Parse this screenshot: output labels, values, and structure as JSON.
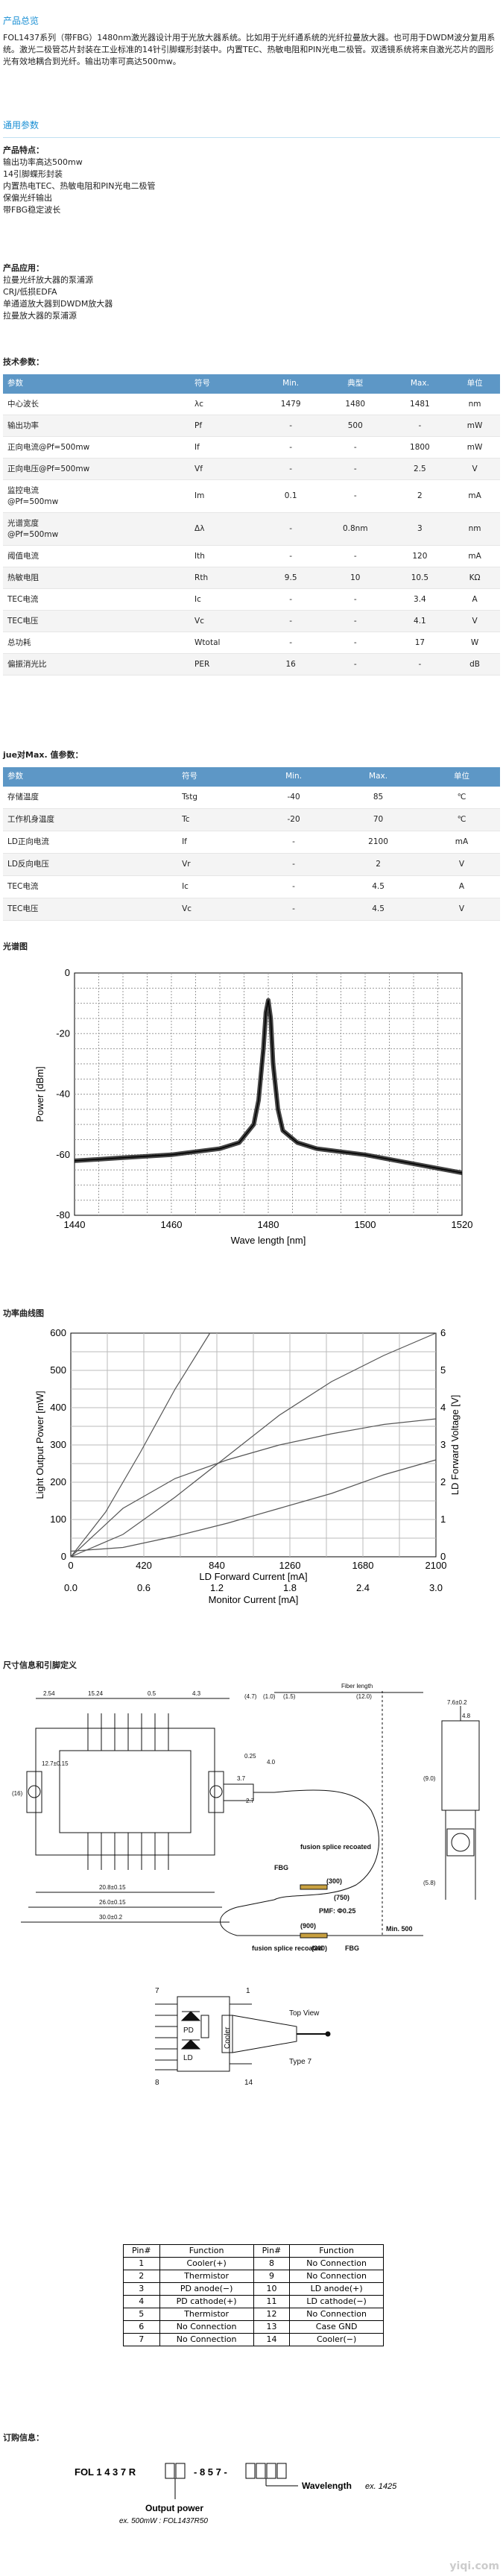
{
  "overview": {
    "title": "产品总览",
    "text": "FOL1437系列（带FBG）1480nm激光器设计用于光放大器系统。比如用于光纤通系统的光纤拉曼放大器。也可用于DWDM波分复用系统。激光二极管芯片封装在工业标准的14针引脚蝶形封装中。内置TEC、热敏电阻和PIN光电二极管。双透镜系统将来自激光芯片的圆形光有效地耦合到光纤。输出功率可高达500mw。"
  },
  "params_title": "通用参数",
  "features": {
    "title": "产品特点：",
    "items": [
      "输出功率高达500mw",
      "14引脚蝶形封装",
      "内置热电TEC、热敏电阻和PIN光电二极管",
      "保偏光纤输出",
      "带FBG稳定波长"
    ]
  },
  "applications": {
    "title": "产品应用：",
    "items": [
      "拉曼光纤放大器的泵浦源",
      "CRJ/低损EDFA",
      "单通道放大器到DWDM放大器",
      "拉曼放大器的泵浦源"
    ]
  },
  "spec_title": "技术参数：",
  "spec": {
    "headers": [
      "参数",
      "符号",
      "Min.",
      "典型",
      "Max.",
      "单位"
    ],
    "rows": [
      [
        "中心波长",
        "λc",
        "1479",
        "1480",
        "1481",
        "nm"
      ],
      [
        "输出功率",
        "Pf",
        "-",
        "500",
        "-",
        "mW"
      ],
      [
        "正向电流@Pf=500mw",
        "If",
        "-",
        "-",
        "1800",
        "mW"
      ],
      [
        "正向电压@Pf=500mw",
        "Vf",
        "-",
        "-",
        "2.5",
        "V"
      ],
      [
        "监控电流\n@Pf=500mw",
        "Im",
        "0.1",
        "-",
        "2",
        "mA"
      ],
      [
        "光谱宽度\n@Pf=500mw",
        "Δλ",
        "-",
        "0.8nm",
        "3",
        "nm"
      ],
      [
        "阈值电流",
        "Ith",
        "-",
        "-",
        "120",
        "mA"
      ],
      [
        "热敏电阻",
        "Rth",
        "9.5",
        "10",
        "10.5",
        "KΩ"
      ],
      [
        "TEC电流",
        "Ic",
        "-",
        "-",
        "3.4",
        "A"
      ],
      [
        "TEC电压",
        "Vc",
        "-",
        "-",
        "4.1",
        "V"
      ],
      [
        "总功耗",
        "Wtotal",
        "-",
        "-",
        "17",
        "W"
      ],
      [
        "偏振消光比",
        "PER",
        "16",
        "-",
        "-",
        "dB"
      ]
    ]
  },
  "max_title": "jue对Max. 值参数：",
  "max": {
    "headers": [
      "参数",
      "符号",
      "Min.",
      "Max.",
      "单位"
    ],
    "rows": [
      [
        "存储温度",
        "Tstg",
        "-40",
        "85",
        "℃"
      ],
      [
        "工作机身温度",
        "Tc",
        "-20",
        "70",
        "℃"
      ],
      [
        "LD正向电流",
        "If",
        "-",
        "2100",
        "mA"
      ],
      [
        "LD反向电压",
        "Vr",
        "-",
        "2",
        "V"
      ],
      [
        "TEC电流",
        "Ic",
        "-",
        "4.5",
        "A"
      ],
      [
        "TEC电压",
        "Vc",
        "-",
        "4.5",
        "V"
      ]
    ]
  },
  "spectrum_title": "光谱图",
  "spectrum_chart": {
    "type": "line",
    "xlabel": "Wave length [nm]",
    "ylabel": "Power [dBm]",
    "xlim": [
      1440,
      1520
    ],
    "ylim": [
      -80,
      0
    ],
    "xticks": [
      "1440",
      "1460",
      "1480",
      "1500",
      "1520"
    ],
    "yticks": [
      "0",
      "-20",
      "-40",
      "-60",
      "-80"
    ],
    "x": [
      1440,
      1450,
      1460,
      1470,
      1474,
      1477,
      1478,
      1479,
      1479.5,
      1480,
      1480.5,
      1481,
      1482,
      1483,
      1486,
      1490,
      1500,
      1510,
      1520
    ],
    "y": [
      -62,
      -61,
      -60,
      -58,
      -56,
      -50,
      -42,
      -25,
      -13,
      -9,
      -15,
      -30,
      -45,
      -52,
      -56,
      -58,
      -60,
      -63,
      -66
    ]
  },
  "power_title": "功率曲线图",
  "power_chart": {
    "type": "line",
    "ylabel_left": "Light Output Power [mW]",
    "ylabel_right": "LD Forward Voltage [V]",
    "xlabel1": "LD Forward Current [mA]",
    "xlabel2": "Monitor Current [mA]",
    "xticks1": [
      "0",
      "420",
      "840",
      "1260",
      "1680",
      "2100"
    ],
    "xticks2": [
      "0.0",
      "0.6",
      "1.2",
      "1.8",
      "2.4",
      "3.0"
    ],
    "yticks_left": [
      "0",
      "100",
      "200",
      "300",
      "400",
      "500",
      "600"
    ],
    "yticks_right": [
      "0",
      "1",
      "2",
      "3",
      "4",
      "5",
      "6"
    ],
    "series": [
      {
        "x": [
          0,
          200,
          400,
          600,
          800
        ],
        "y": [
          0,
          120,
          280,
          450,
          600
        ]
      },
      {
        "x": [
          0,
          300,
          600,
          900,
          1200,
          1500,
          1800,
          2100
        ],
        "y": [
          0,
          60,
          160,
          270,
          380,
          470,
          540,
          600
        ]
      },
      {
        "x": [
          0,
          300,
          600,
          900,
          1200,
          1500,
          1800,
          2100
        ],
        "y": [
          0,
          130,
          210,
          260,
          300,
          330,
          355,
          370
        ]
      },
      {
        "x": [
          0,
          300,
          600,
          900,
          1200,
          1500,
          1800,
          2100
        ],
        "y": [
          15,
          25,
          55,
          90,
          130,
          170,
          220,
          260
        ]
      }
    ]
  },
  "dims_title": "尺寸信息和引脚定义",
  "drawing": {
    "fbg": "FBG",
    "fusion_top": "fusion splice recoated",
    "fusion_bottom": "fusion splice recoated",
    "pmf": "PMF: Φ0.25",
    "min500": "Min. 500",
    "fiber_length": "Fiber length",
    "d300a": "(300)",
    "d750": "(750)",
    "d300b": "(300)",
    "d900": "(900)",
    "top_view": "Top View",
    "type7": "Type 7",
    "cooler": "Cooler",
    "pd": "PD",
    "ld": "LD",
    "pin7": "7",
    "pin1": "1",
    "pin8": "8",
    "pin14": "14",
    "dims": [
      "2.54",
      "15.24",
      "0.5",
      "4.3",
      "26.0±0.15",
      "20.8±0.15",
      "30.0±0.2",
      "7.6±0.2",
      "4.8",
      "12.7±0.15",
      "2.7",
      "0.25",
      "3.7",
      "4.0",
      "(16)",
      "(4.7)",
      "(1.0)",
      "(1.5)",
      "(12.0)",
      "(5.8)",
      "(9.0)"
    ]
  },
  "pins": {
    "headers": [
      "Pin#",
      "Function",
      "Pin#",
      "Function"
    ],
    "rows": [
      [
        "1",
        "Cooler(+)",
        "8",
        "No Connection"
      ],
      [
        "2",
        "Thermistor",
        "9",
        "No Connection"
      ],
      [
        "3",
        "PD anode(−)",
        "10",
        "LD anode(+)"
      ],
      [
        "4",
        "PD cathode(+)",
        "11",
        "LD cathode(−)"
      ],
      [
        "5",
        "Thermistor",
        "12",
        "No Connection"
      ],
      [
        "6",
        "No Connection",
        "13",
        "Case GND"
      ],
      [
        "7",
        "No Connection",
        "14",
        "Cooler(−)"
      ]
    ]
  },
  "order_title": "订购信息：",
  "order": {
    "code_prefix": "FOL 1 4 3 7 R",
    "code_mid": "- 8 5 7 -",
    "wavelength_label": "Wavelength",
    "wavelength_ex": "ex. 1425",
    "output_label": "Output power",
    "output_ex": "ex. 500mW : FOL1437R50"
  },
  "watermark": "yiqi.com"
}
